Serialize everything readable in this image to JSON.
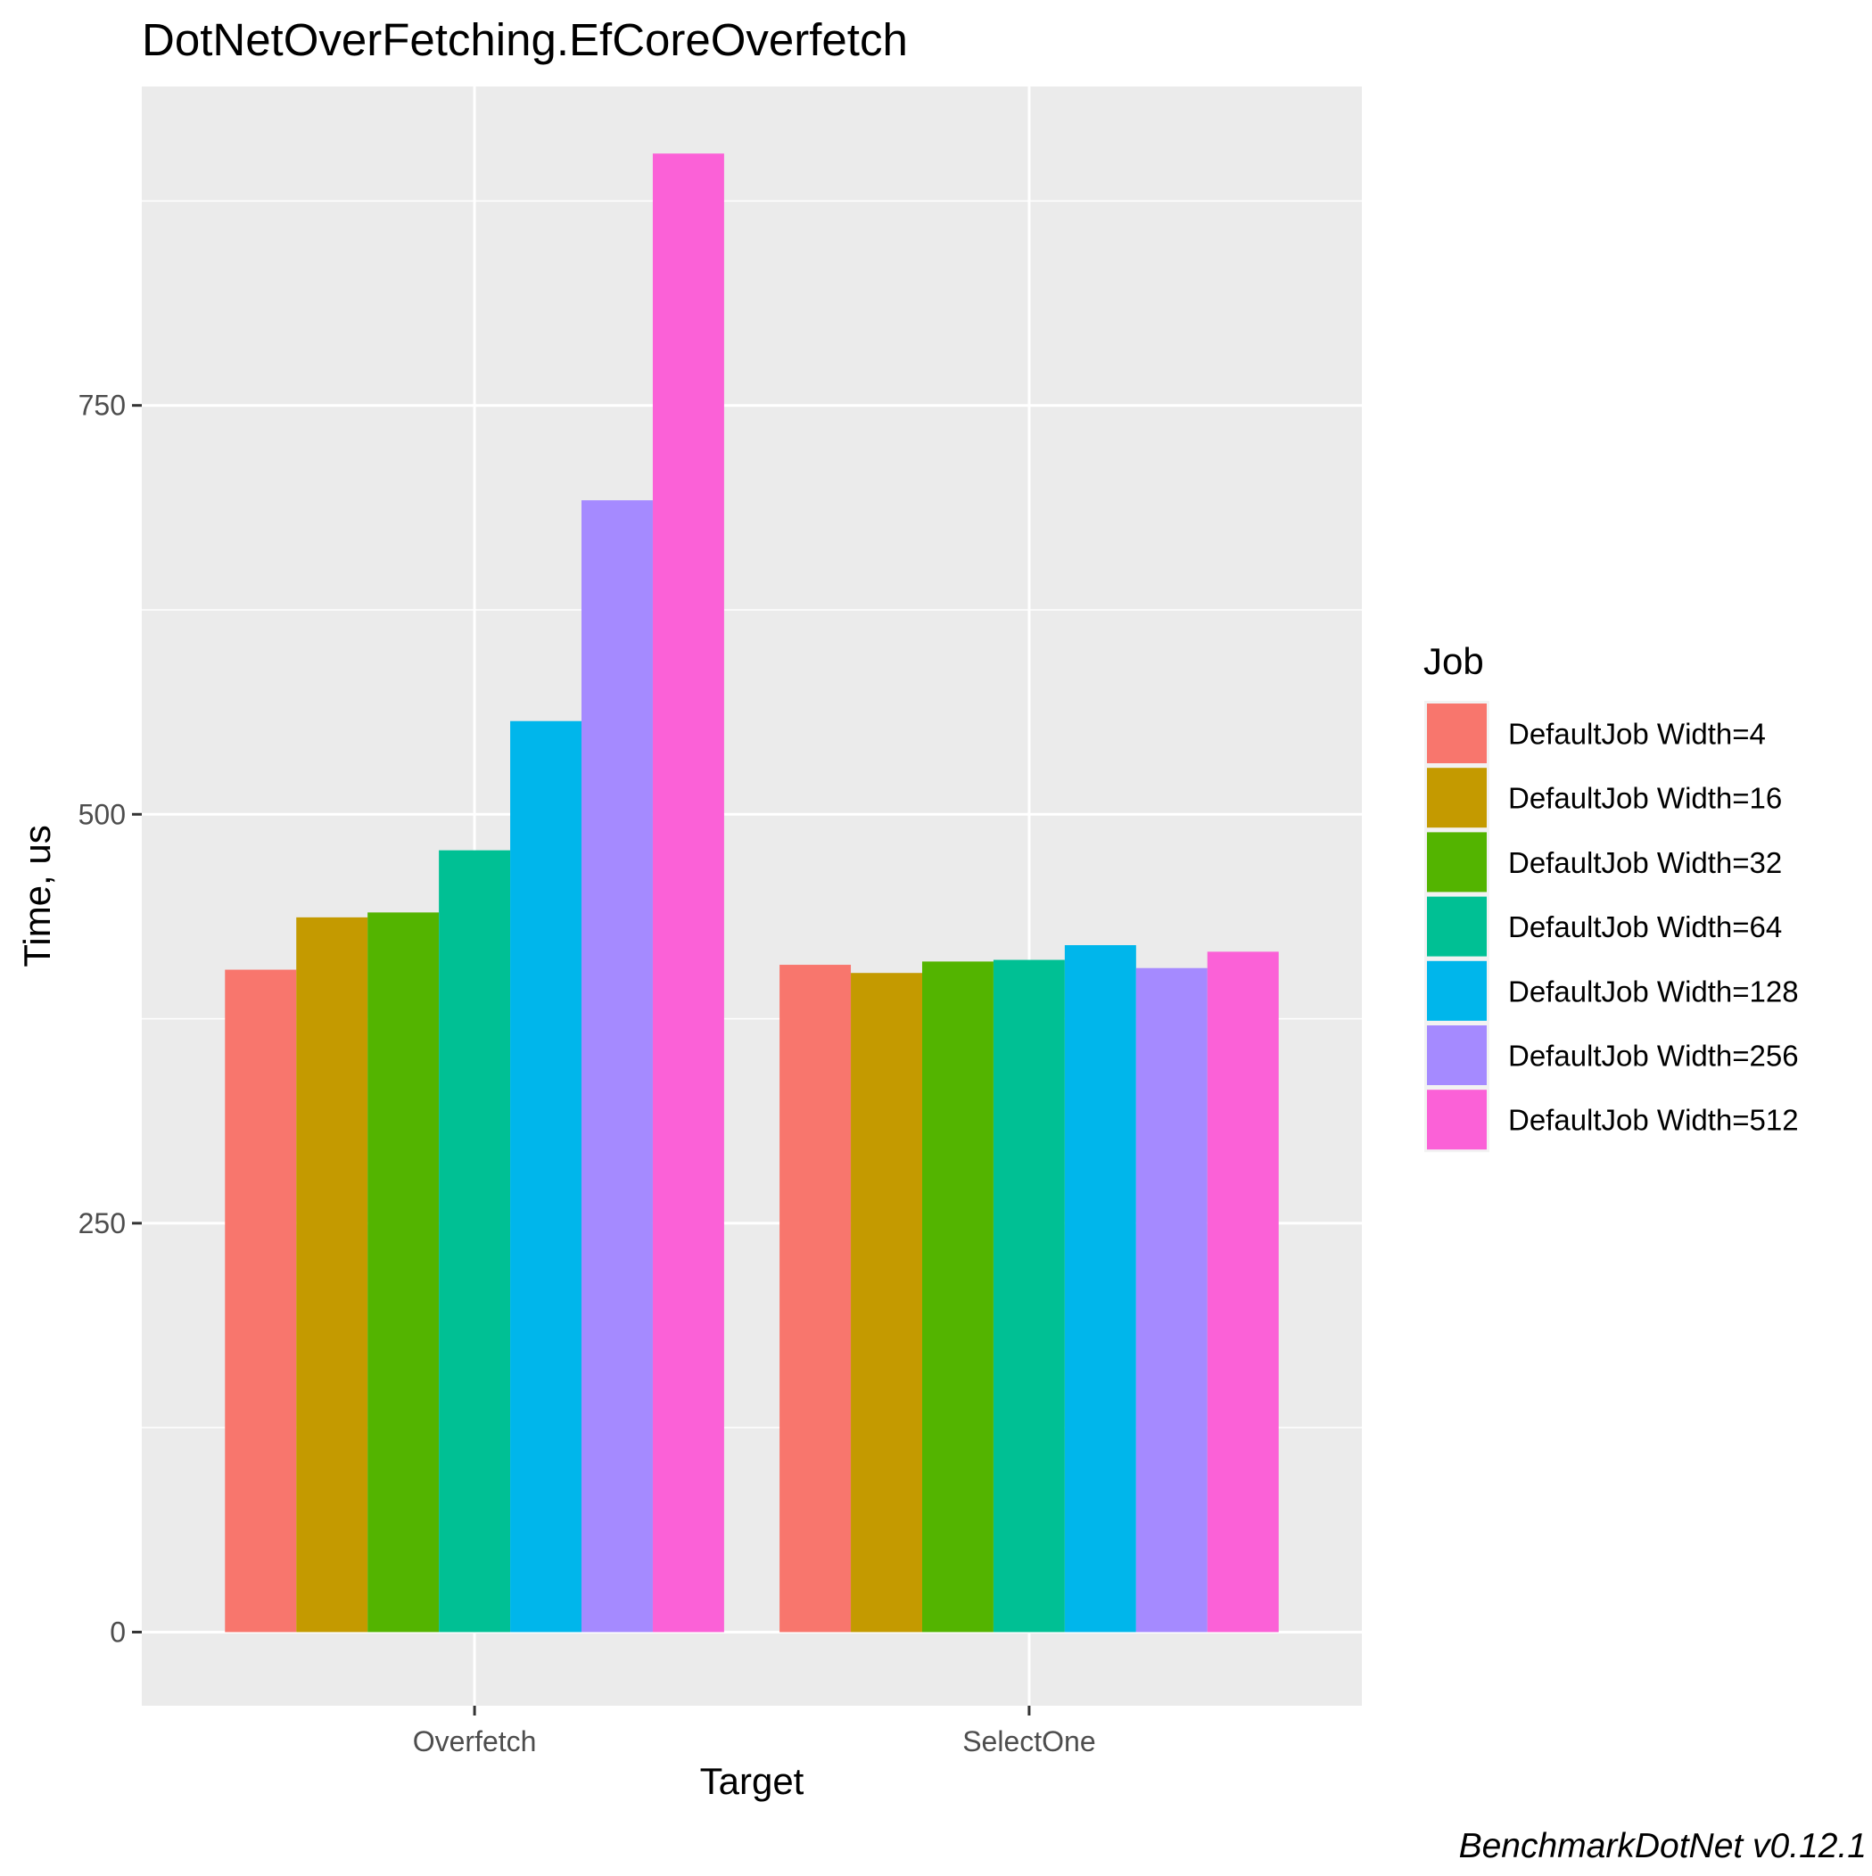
{
  "chart_data": {
    "type": "bar",
    "title": "DotNetOverFetching.EfCoreOverfetch",
    "xlabel": "Target",
    "ylabel": "Time, us",
    "categories": [
      "Overfetch",
      "SelectOne"
    ],
    "ylim": [
      -45,
      945
    ],
    "yticks": [
      0,
      250,
      500,
      750
    ],
    "grid": true,
    "legend": {
      "title": "Job",
      "position": "right"
    },
    "series": [
      {
        "name": "DefaultJob Width=4",
        "color": "#F8766D",
        "values": [
          405,
          408
        ]
      },
      {
        "name": "DefaultJob Width=16",
        "color": "#C49A00",
        "values": [
          437,
          403
        ]
      },
      {
        "name": "DefaultJob Width=32",
        "color": "#53B400",
        "values": [
          440,
          410
        ]
      },
      {
        "name": "DefaultJob Width=64",
        "color": "#00C094",
        "values": [
          478,
          411
        ]
      },
      {
        "name": "DefaultJob Width=128",
        "color": "#00B6EB",
        "values": [
          557,
          420
        ]
      },
      {
        "name": "DefaultJob Width=256",
        "color": "#A58AFF",
        "values": [
          692,
          406
        ]
      },
      {
        "name": "DefaultJob Width=512",
        "color": "#FB61D7",
        "values": [
          904,
          416
        ]
      }
    ],
    "caption": "BenchmarkDotNet v0.12.1"
  },
  "colors": {
    "panel_background": "#EBEBEB",
    "grid": "#FFFFFF",
    "tick": "#333333"
  }
}
